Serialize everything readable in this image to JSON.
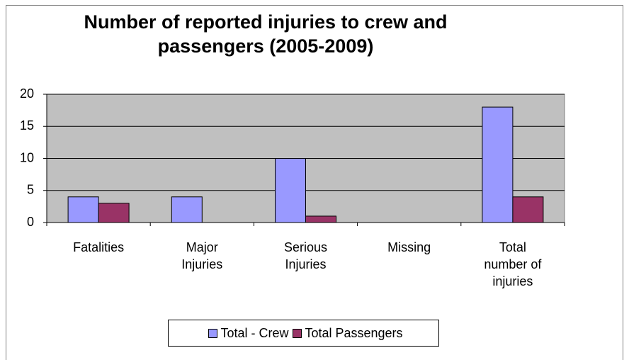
{
  "chart_data": {
    "type": "bar",
    "title": "Number of reported injuries to crew and passengers (2005-2009)",
    "categories": [
      "Fatalities",
      "Major Injuries",
      "Serious Injuries",
      "Missing",
      "Total number of injuries"
    ],
    "series": [
      {
        "name": "Total - Crew",
        "color": "#9999ff",
        "values": [
          4,
          4,
          10,
          0,
          18
        ]
      },
      {
        "name": "Total Passengers",
        "color": "#993366",
        "values": [
          3,
          0,
          1,
          0,
          4
        ]
      }
    ],
    "ylim": [
      0,
      20
    ],
    "yticks": [
      0,
      5,
      10,
      15,
      20
    ],
    "grid": true,
    "plot_background": "#c0c0c0",
    "legend": "bottom"
  }
}
